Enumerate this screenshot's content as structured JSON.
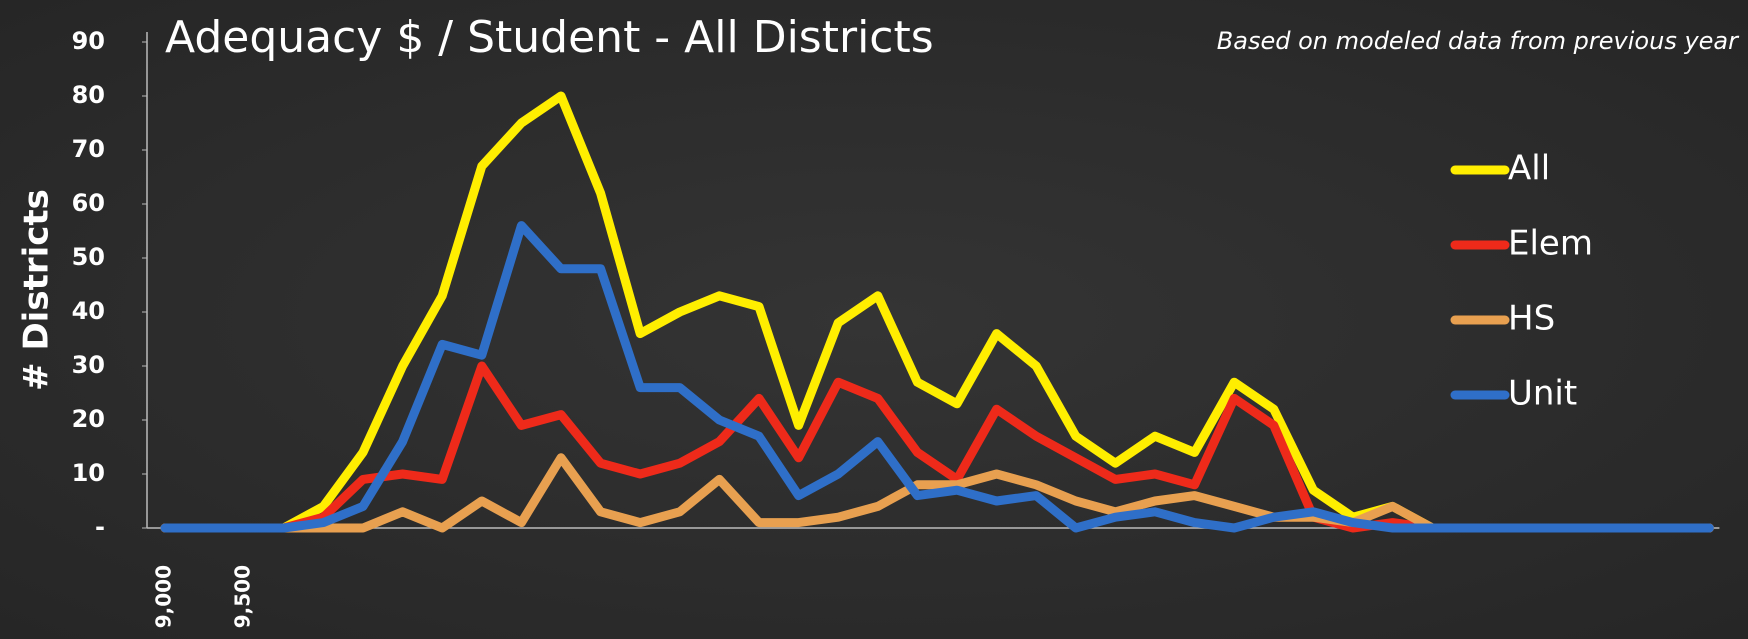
{
  "chart_data": {
    "type": "line",
    "title": "Adequacy $ / Student - All Districts",
    "subtitle": "Based on modeled data from previous year",
    "y_label": "# Districts",
    "categories": [
      "9,000",
      null,
      "9,500",
      null,
      null,
      null,
      null,
      null,
      null,
      null,
      null,
      null,
      null,
      null,
      null,
      null,
      null,
      null,
      null,
      null,
      null,
      null,
      null,
      null,
      null,
      null,
      null,
      null,
      null,
      null,
      null,
      null,
      null,
      null,
      null,
      null,
      null,
      null,
      null,
      null
    ],
    "series": [
      {
        "name": "All",
        "color": "#ffee00",
        "values": [
          0,
          0,
          0,
          0,
          4,
          14,
          30,
          43,
          67,
          75,
          80,
          62,
          36,
          40,
          43,
          41,
          19,
          38,
          43,
          27,
          23,
          36,
          30,
          17,
          12,
          17,
          14,
          27,
          22,
          7,
          2,
          4,
          0,
          0,
          0,
          0,
          0,
          0,
          0,
          0
        ]
      },
      {
        "name": "Elem",
        "color": "#ee2a1a",
        "values": [
          0,
          0,
          0,
          0,
          2,
          9,
          10,
          9,
          30,
          19,
          21,
          12,
          10,
          12,
          16,
          24,
          13,
          27,
          24,
          14,
          9,
          22,
          17,
          13,
          9,
          10,
          8,
          24,
          19,
          2,
          0,
          1,
          0,
          0,
          0,
          0,
          0,
          0,
          0,
          0
        ]
      },
      {
        "name": "HS",
        "color": "#e8a050",
        "values": [
          0,
          0,
          0,
          0,
          0,
          0,
          3,
          0,
          5,
          1,
          13,
          3,
          1,
          3,
          9,
          1,
          1,
          2,
          4,
          8,
          8,
          10,
          8,
          5,
          3,
          5,
          6,
          4,
          2,
          2,
          1,
          4,
          0,
          0,
          0,
          0,
          0,
          0,
          0,
          0
        ]
      },
      {
        "name": "Unit",
        "color": "#2f6fc8",
        "values": [
          0,
          0,
          0,
          0,
          1,
          4,
          16,
          34,
          32,
          56,
          48,
          48,
          26,
          26,
          20,
          17,
          6,
          10,
          16,
          6,
          7,
          5,
          6,
          0,
          2,
          3,
          1,
          0,
          2,
          3,
          1,
          0,
          0,
          0,
          0,
          0,
          0,
          0,
          0,
          0
        ]
      }
    ],
    "ylim": [
      0,
      90
    ],
    "yticks": [
      {
        "value": 0,
        "label": "-"
      },
      10,
      20,
      30,
      40,
      50,
      60,
      70,
      80,
      90
    ],
    "legend": "right"
  }
}
